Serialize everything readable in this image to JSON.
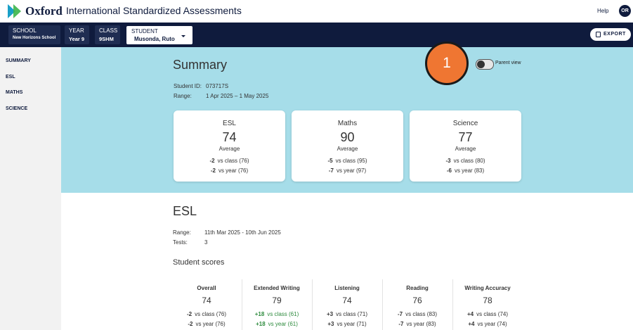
{
  "header": {
    "brand": "Oxford",
    "title": "International Standardized Assessments",
    "help": "Help",
    "avatar": "OR"
  },
  "nav": {
    "filters": [
      {
        "label": "SCHOOL",
        "value": "New Horizons School"
      },
      {
        "label": "YEAR",
        "value": "Year 9"
      },
      {
        "label": "CLASS",
        "value": "9SHM"
      }
    ],
    "student": {
      "label": "STUDENT",
      "value": "Musonda, Ruto"
    },
    "export": "EXPORT"
  },
  "sidebar": [
    "SUMMARY",
    "ESL",
    "MATHS",
    "SCIENCE"
  ],
  "summary": {
    "title": "Summary",
    "badge": "1",
    "toggle": "Parent view",
    "fields": [
      {
        "label": "Student ID:",
        "value": "073717S"
      },
      {
        "label": "Range:",
        "value": "1 Apr 2025 – 1 May 2025"
      }
    ],
    "cards": [
      {
        "subject": "ESL",
        "value": 74,
        "caption": "Average",
        "rows": [
          {
            "delta": "-2",
            "text": "vs class (76)"
          },
          {
            "delta": "-2",
            "text": "vs year (76)"
          }
        ]
      },
      {
        "subject": "Maths",
        "value": 90,
        "caption": "Average",
        "rows": [
          {
            "delta": "-5",
            "text": "vs class (95)"
          },
          {
            "delta": "-7",
            "text": "vs year (97)"
          }
        ]
      },
      {
        "subject": "Science",
        "value": 77,
        "caption": "Average",
        "rows": [
          {
            "delta": "-3",
            "text": "vs class (80)"
          },
          {
            "delta": "-6",
            "text": "vs year (83)"
          }
        ]
      }
    ]
  },
  "esl": {
    "title": "ESL",
    "fields": [
      {
        "label": "Range:",
        "value": "11th Mar 2025 - 10th Jun 2025"
      },
      {
        "label": "Tests:",
        "value": "3"
      }
    ],
    "scores_title": "Student scores",
    "columns": [
      {
        "name": "Overall",
        "value": 74,
        "rows": [
          {
            "delta": "-2",
            "text": "vs class (76)"
          },
          {
            "delta": "-2",
            "text": "vs year (76)"
          }
        ]
      },
      {
        "name": "Extended Writing",
        "value": 79,
        "rows": [
          {
            "delta": "+18",
            "text": "vs class (61)",
            "color": "#2e8b3e"
          },
          {
            "delta": "+18",
            "text": "vs year (61)",
            "color": "#2e8b3e"
          }
        ]
      },
      {
        "name": "Listening",
        "value": 74,
        "rows": [
          {
            "delta": "+3",
            "text": "vs class (71)"
          },
          {
            "delta": "+3",
            "text": "vs year (71)"
          }
        ]
      },
      {
        "name": "Reading",
        "value": 76,
        "rows": [
          {
            "delta": "-7",
            "text": "vs class (83)"
          },
          {
            "delta": "-7",
            "text": "vs year (83)"
          }
        ]
      },
      {
        "name": "Writing Accuracy",
        "value": 78,
        "rows": [
          {
            "delta": "+4",
            "text": "vs class (74)"
          },
          {
            "delta": "+4",
            "text": "vs year (74)"
          }
        ]
      }
    ]
  }
}
